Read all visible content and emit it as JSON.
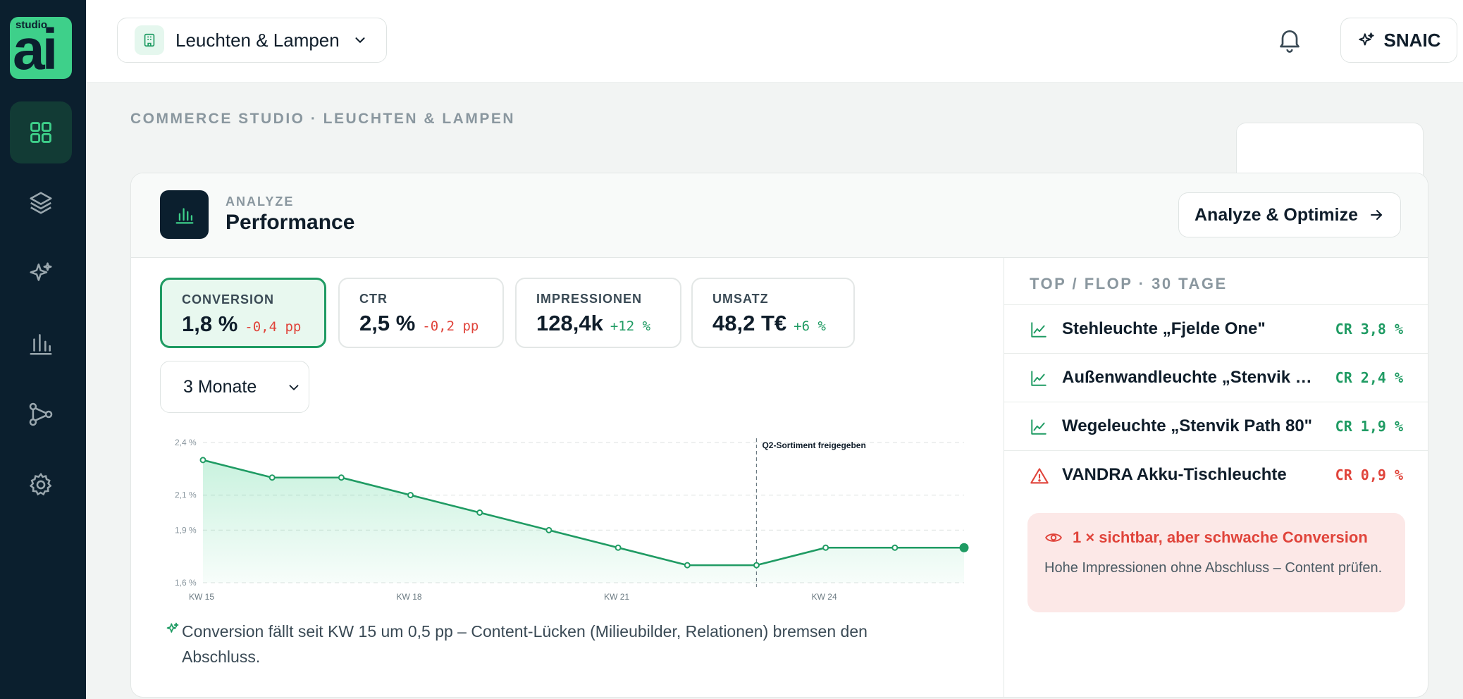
{
  "sidebar": {
    "logo_small": "studio",
    "logo_big": "ai",
    "items": [
      {
        "name": "dashboard",
        "icon": "grid-icon",
        "active": true
      },
      {
        "name": "layers",
        "icon": "layers-icon"
      },
      {
        "name": "ai",
        "icon": "sparkle-icon"
      },
      {
        "name": "analytics",
        "icon": "bar-chart-icon"
      },
      {
        "name": "connections",
        "icon": "network-icon"
      },
      {
        "name": "settings",
        "icon": "gear-icon"
      }
    ]
  },
  "topbar": {
    "store_label": "Leuchten & Lampen",
    "user_label": "SNAIC"
  },
  "breadcrumb": "COMMERCE STUDIO · LEUCHTEN & LAMPEN",
  "card": {
    "eyebrow": "ANALYZE",
    "title": "Performance",
    "action_label": "Analyze & Optimize"
  },
  "kpis": [
    {
      "label": "CONVERSION",
      "value": "1,8 %",
      "delta": "-0,4 pp",
      "trend": "neg",
      "active": true
    },
    {
      "label": "CTR",
      "value": "2,5 %",
      "delta": "-0,2 pp",
      "trend": "neg"
    },
    {
      "label": "IMPRESSIONEN",
      "value": "128,4k",
      "delta": "+12 %",
      "trend": "pos"
    },
    {
      "label": "UMSATZ",
      "value": "48,2 T€",
      "delta": "+6 %",
      "trend": "pos"
    }
  ],
  "period": {
    "selected": "3 Monate"
  },
  "chart_data": {
    "type": "area",
    "x": [
      "KW 15",
      "KW 16",
      "KW 17",
      "KW 18",
      "KW 19",
      "KW 20",
      "KW 21",
      "KW 22",
      "KW 23",
      "KW 24",
      "KW 25",
      "KW 26"
    ],
    "values": [
      2.3,
      2.2,
      2.2,
      2.1,
      2.0,
      1.9,
      1.8,
      1.7,
      1.7,
      1.8,
      1.8,
      1.8
    ],
    "x_tick_labels": [
      "KW 15",
      "KW 18",
      "KW 21",
      "KW 24"
    ],
    "y_ticks": [
      {
        "value": 2.4,
        "label": "2,4 %"
      },
      {
        "value": 2.1,
        "label": "2,1 %"
      },
      {
        "value": 1.9,
        "label": "1,9 %"
      },
      {
        "value": 1.6,
        "label": "1,6 %"
      }
    ],
    "annotation": {
      "x": "KW 23",
      "text": "Q2-Sortiment freigegeben"
    },
    "grid": true,
    "line_color": "#1f9b63",
    "fill_color": "#3ed08a"
  },
  "insight": "Conversion fällt seit KW 15 um 0,5 pp – Content-Lücken (Milieubilder, Relationen) bremsen den Abschluss.",
  "topflop": {
    "title": "TOP / FLOP · 30 TAGE",
    "items": [
      {
        "name": "Stehleuchte „Fjelde One\"",
        "cr": "CR 3,8 %",
        "type": "top"
      },
      {
        "name": "Außenwandleuchte „Stenvik Cube\"",
        "cr": "CR 2,4 %",
        "type": "top"
      },
      {
        "name": "Wegeleuchte „Stenvik Path 80\"",
        "cr": "CR 1,9 %",
        "type": "top"
      },
      {
        "name": "VANDRA Akku-Tischleuchte",
        "cr": "CR 0,9 %",
        "type": "flop"
      }
    ]
  },
  "alert": {
    "title": "1 × sichtbar, aber schwache Conversion",
    "body": "Hohe Impressionen ohne Abschluss – Content prüfen."
  },
  "colors": {
    "accent": "#1f9b63",
    "danger": "#e0443b",
    "sidebar": "#0b1f2e"
  }
}
